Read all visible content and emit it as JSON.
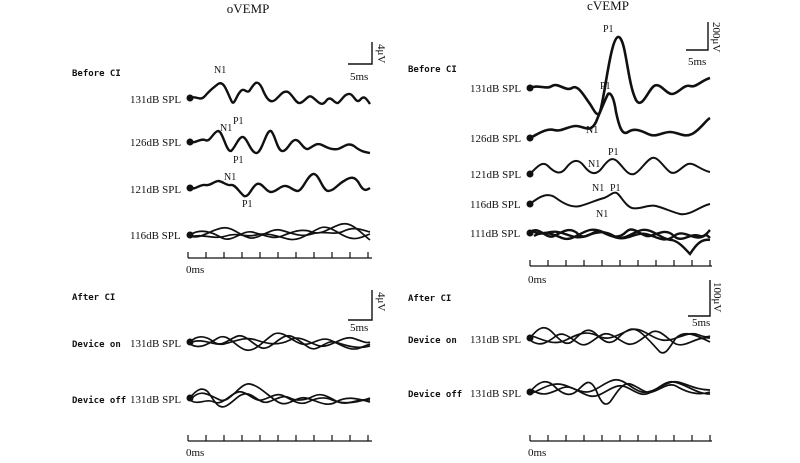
{
  "panels": {
    "ovemp": {
      "title": "oVEMP",
      "section_before": "Before CI",
      "section_after": "After CI",
      "calib_before": {
        "amp": "4μV",
        "time": "5ms"
      },
      "calib_after": {
        "amp": "4μV",
        "time": "5ms"
      },
      "time_origin_before": "0ms",
      "time_origin_after": "0ms",
      "before_rows": [
        {
          "label": "131dB SPL",
          "n1": "N1",
          "p1": "P1"
        },
        {
          "label": "126dB SPL",
          "n1": "N1",
          "p1": "P1"
        },
        {
          "label": "121dB SPL",
          "n1": "N1",
          "p1": "P1"
        },
        {
          "label": "116dB SPL",
          "n1": "",
          "p1": ""
        }
      ],
      "after_rows": [
        {
          "condition": "Device on",
          "label": "131dB SPL"
        },
        {
          "condition": "Device off",
          "label": "131dB SPL"
        }
      ]
    },
    "cvemp": {
      "title": "cVEMP",
      "section_before": "Before CI",
      "section_after": "After CI",
      "calib_before": {
        "amp": "200μV",
        "time": "5ms"
      },
      "calib_after": {
        "amp": "100μV",
        "time": "5ms"
      },
      "time_origin_before": "0ms",
      "time_origin_after": "0ms",
      "before_rows": [
        {
          "label": "131dB SPL",
          "n1": "N1",
          "p1": "P1"
        },
        {
          "label": "126dB SPL",
          "n1": "N1",
          "p1": "P1"
        },
        {
          "label": "121dB SPL",
          "n1": "N1",
          "p1": "P1"
        },
        {
          "label": "116dB SPL",
          "n1": "N1",
          "p1": "P1"
        },
        {
          "label": "111dB SPL",
          "n1": "",
          "p1": ""
        }
      ],
      "after_rows": [
        {
          "condition": "Device on",
          "label": "131dB SPL"
        },
        {
          "condition": "Device off",
          "label": "131dB SPL"
        }
      ]
    }
  }
}
